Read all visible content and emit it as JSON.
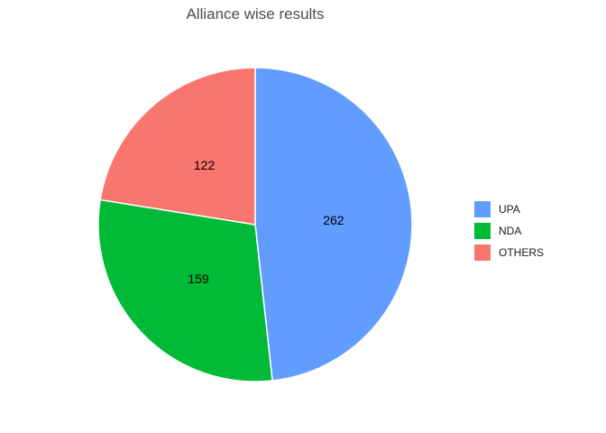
{
  "chart_data": {
    "type": "pie",
    "title": "Alliance wise results",
    "categories": [
      "UPA",
      "NDA",
      "OTHERS"
    ],
    "values": [
      262,
      159,
      122
    ],
    "colors": [
      "#619CFF",
      "#00BA38",
      "#F8766D"
    ],
    "start": "top",
    "direction": "clockwise",
    "legend_position": "right"
  }
}
